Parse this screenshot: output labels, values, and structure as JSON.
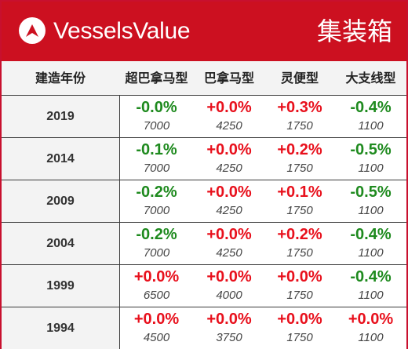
{
  "header": {
    "brand": "VesselsValue",
    "title": "集装箱"
  },
  "columns": [
    "建造年份",
    "超巴拿马型",
    "巴拿马型",
    "灵便型",
    "大支线型"
  ],
  "colors": {
    "brand_red": "#cc1020",
    "positive": "#e8101c",
    "negative": "#1e8a1e"
  },
  "rows": [
    {
      "year": "2019",
      "cells": [
        {
          "pct": "-0.0%",
          "val": "7000",
          "sign": "neg"
        },
        {
          "pct": "+0.0%",
          "val": "4250",
          "sign": "pos"
        },
        {
          "pct": "+0.3%",
          "val": "1750",
          "sign": "pos"
        },
        {
          "pct": "-0.4%",
          "val": "1100",
          "sign": "neg"
        }
      ]
    },
    {
      "year": "2014",
      "cells": [
        {
          "pct": "-0.1%",
          "val": "7000",
          "sign": "neg"
        },
        {
          "pct": "+0.0%",
          "val": "4250",
          "sign": "pos"
        },
        {
          "pct": "+0.2%",
          "val": "1750",
          "sign": "pos"
        },
        {
          "pct": "-0.5%",
          "val": "1100",
          "sign": "neg"
        }
      ]
    },
    {
      "year": "2009",
      "cells": [
        {
          "pct": "-0.2%",
          "val": "7000",
          "sign": "neg"
        },
        {
          "pct": "+0.0%",
          "val": "4250",
          "sign": "pos"
        },
        {
          "pct": "+0.1%",
          "val": "1750",
          "sign": "pos"
        },
        {
          "pct": "-0.5%",
          "val": "1100",
          "sign": "neg"
        }
      ]
    },
    {
      "year": "2004",
      "cells": [
        {
          "pct": "-0.2%",
          "val": "7000",
          "sign": "neg"
        },
        {
          "pct": "+0.0%",
          "val": "4250",
          "sign": "pos"
        },
        {
          "pct": "+0.2%",
          "val": "1750",
          "sign": "pos"
        },
        {
          "pct": "-0.4%",
          "val": "1100",
          "sign": "neg"
        }
      ]
    },
    {
      "year": "1999",
      "cells": [
        {
          "pct": "+0.0%",
          "val": "6500",
          "sign": "pos"
        },
        {
          "pct": "+0.0%",
          "val": "4000",
          "sign": "pos"
        },
        {
          "pct": "+0.0%",
          "val": "1750",
          "sign": "pos"
        },
        {
          "pct": "-0.4%",
          "val": "1100",
          "sign": "neg"
        }
      ]
    },
    {
      "year": "1994",
      "cells": [
        {
          "pct": "+0.0%",
          "val": "4500",
          "sign": "pos"
        },
        {
          "pct": "+0.0%",
          "val": "3750",
          "sign": "pos"
        },
        {
          "pct": "+0.0%",
          "val": "1750",
          "sign": "pos"
        },
        {
          "pct": "+0.0%",
          "val": "1100",
          "sign": "pos"
        }
      ]
    }
  ]
}
